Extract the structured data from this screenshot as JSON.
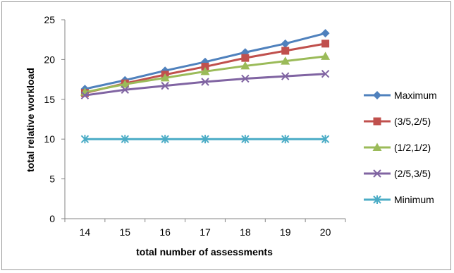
{
  "chart_data": {
    "type": "line",
    "title": "",
    "xlabel": "total number of assessments",
    "ylabel": "total relative workload",
    "x": [
      14,
      15,
      16,
      17,
      18,
      19,
      20
    ],
    "x_tick_labels": [
      "14",
      "15",
      "16",
      "17",
      "18",
      "19",
      "20"
    ],
    "ylim": [
      0,
      25
    ],
    "y_ticks": [
      0,
      5,
      10,
      15,
      20,
      25
    ],
    "y_tick_labels": [
      "0",
      "5",
      "10",
      "15",
      "20",
      "25"
    ],
    "grid": false,
    "legend_position": "right",
    "series": [
      {
        "name": "Maximum",
        "color": "#4F81BD",
        "marker": "diamond",
        "values": [
          16.3,
          17.4,
          18.6,
          19.7,
          20.9,
          22.0,
          23.3
        ]
      },
      {
        "name": "(3/5,2/5)",
        "color": "#C0504D",
        "marker": "square",
        "values": [
          15.8,
          17.0,
          18.1,
          19.1,
          20.2,
          21.1,
          22.0
        ]
      },
      {
        "name": "(1/2,1/2)",
        "color": "#9BBB59",
        "marker": "triangle",
        "values": [
          15.9,
          16.9,
          17.7,
          18.5,
          19.2,
          19.8,
          20.4
        ]
      },
      {
        "name": "(2/5,3/5)",
        "color": "#8064A2",
        "marker": "x",
        "values": [
          15.5,
          16.2,
          16.7,
          17.2,
          17.6,
          17.9,
          18.2
        ]
      },
      {
        "name": "Minimum",
        "color": "#4BACC6",
        "marker": "star",
        "values": [
          10.0,
          10.0,
          10.0,
          10.0,
          10.0,
          10.0,
          10.0
        ]
      }
    ]
  }
}
